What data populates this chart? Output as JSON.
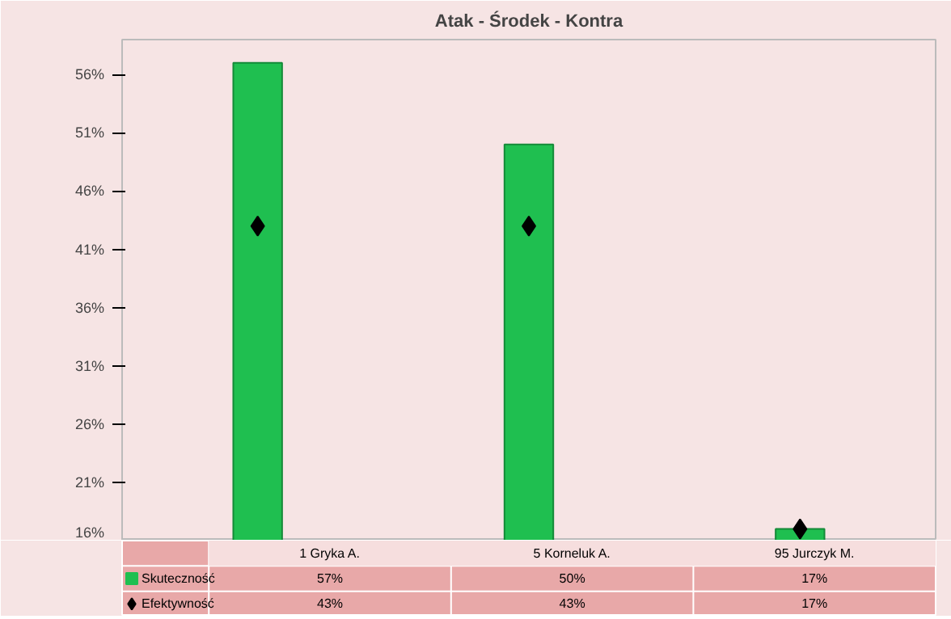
{
  "chart_data": {
    "type": "bar",
    "title": "Atak - Środek - Kontra",
    "categories": [
      "1 Gryka A.",
      "5 Korneluk A.",
      "95 Jurczyk M."
    ],
    "series": [
      {
        "name": "Skuteczność",
        "color": "#1fbf50",
        "values": [
          57,
          50,
          17
        ]
      },
      {
        "name": "Efektywność",
        "color": "#000000",
        "type": "scatter",
        "marker": "diamond",
        "values": [
          43,
          43,
          17
        ]
      }
    ],
    "ylim": [
      16,
      59
    ],
    "yticks": [
      {
        "value": 16,
        "label": "16%"
      },
      {
        "value": 21,
        "label": "21%"
      },
      {
        "value": 26,
        "label": "26%"
      },
      {
        "value": 31,
        "label": "31%"
      },
      {
        "value": 36,
        "label": "36%"
      },
      {
        "value": 41,
        "label": "41%"
      },
      {
        "value": 46,
        "label": "46%"
      },
      {
        "value": 51,
        "label": "51%"
      },
      {
        "value": 56,
        "label": "56%"
      }
    ],
    "value_labels": [
      [
        "57%",
        "50%",
        "17%"
      ],
      [
        "43%",
        "43%",
        "17%"
      ]
    ],
    "legend": "bottom",
    "grid": false
  }
}
